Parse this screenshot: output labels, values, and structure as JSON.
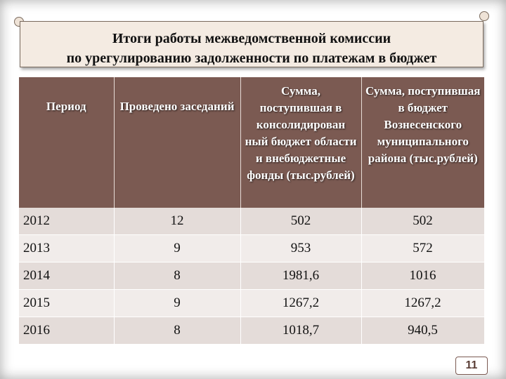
{
  "header": {
    "title_line1": "Итоги работы межведомственной комиссии",
    "title_line2": "по урегулированию задолженности по платежам в бюджет"
  },
  "table": {
    "columns": [
      "Период",
      "Проведено заседаний",
      "Сумма, поступившая в консолидирован ный бюджет области и внебюджетные фонды (тыс.рублей)",
      "Сумма, поступившая в бюджет Вознесенского муниципального района (тыс.рублей)"
    ],
    "rows": [
      [
        "2012",
        "12",
        "502",
        "502"
      ],
      [
        "2013",
        "9",
        "953",
        "572"
      ],
      [
        "2014",
        "8",
        "1981,6",
        "1016"
      ],
      [
        "2015",
        "9",
        "1267,2",
        "1267,2"
      ],
      [
        "2016",
        "8",
        "1018,7",
        "940,5"
      ]
    ]
  },
  "footer": {
    "page_number": "11"
  },
  "colors": {
    "header_bg": "#7b5a52",
    "row_odd": "#e4dcd9",
    "row_even": "#f1ecea"
  }
}
